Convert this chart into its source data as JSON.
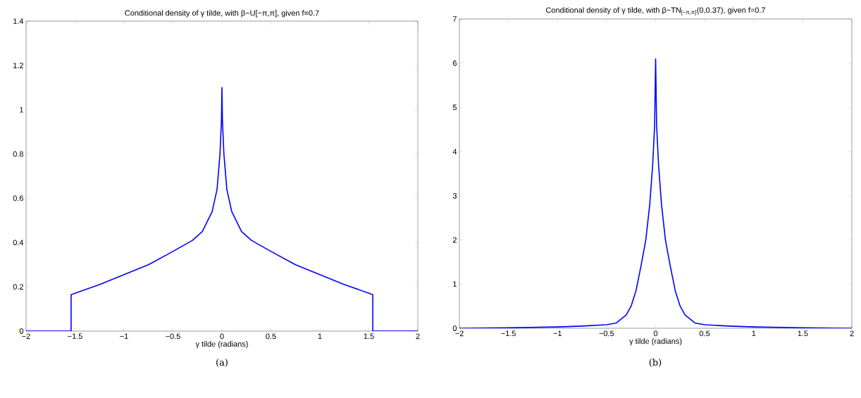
{
  "chart_data": [
    {
      "type": "line",
      "title": "Conditional density of γ tilde, with β~U[−π,π], given f=0.7",
      "xlabel": "γ tilde (radians)",
      "annotations": [
        "(a)"
      ],
      "x": [
        -2,
        -1.54,
        -1.54,
        -1.25,
        -1,
        -0.75,
        -0.5,
        -0.3,
        -0.2,
        -0.1,
        -0.05,
        -0.02,
        -0.005,
        0,
        0.005,
        0.02,
        0.05,
        0.1,
        0.2,
        0.3,
        0.5,
        0.75,
        1,
        1.25,
        1.54,
        1.54,
        2
      ],
      "series": [
        {
          "color": "#0000ff",
          "values": [
            0,
            0,
            0.165,
            0.21,
            0.255,
            0.3,
            0.36,
            0.41,
            0.45,
            0.54,
            0.64,
            0.8,
            0.95,
            1.1,
            0.95,
            0.8,
            0.64,
            0.54,
            0.45,
            0.41,
            0.36,
            0.3,
            0.255,
            0.21,
            0.165,
            0,
            0
          ]
        }
      ],
      "xlim": [
        -2,
        2
      ],
      "ylim": [
        0,
        1.4
      ],
      "xticks": [
        {
          "value": -2,
          "label": "−2"
        },
        {
          "value": -1.5,
          "label": "−1.5"
        },
        {
          "value": -1,
          "label": "−1"
        },
        {
          "value": -0.5,
          "label": "−0.5"
        },
        0,
        0.5,
        1,
        1.5,
        2
      ],
      "yticks": [
        0,
        0.2,
        0.4,
        0.6,
        0.8,
        1,
        1.2,
        1.4
      ]
    },
    {
      "type": "line",
      "title": "Conditional density of γ tilde, with β~TN$_{[−π,π]}$(0,0.37), given f=0.7",
      "xlabel": "γ tilde (radians)",
      "annotations": [
        "(b)"
      ],
      "x": [
        -2,
        -1.5,
        -1,
        -0.75,
        -0.5,
        -0.4,
        -0.3,
        -0.25,
        -0.2,
        -0.15,
        -0.1,
        -0.06,
        -0.03,
        -0.01,
        0,
        0.01,
        0.03,
        0.06,
        0.1,
        0.15,
        0.2,
        0.25,
        0.3,
        0.4,
        0.5,
        0.75,
        1,
        1.5,
        2
      ],
      "series": [
        {
          "color": "#0000ff",
          "values": [
            0,
            0.01,
            0.03,
            0.05,
            0.08,
            0.12,
            0.3,
            0.5,
            0.85,
            1.4,
            2.0,
            2.8,
            3.7,
            4.6,
            6.1,
            4.6,
            3.7,
            2.8,
            2.0,
            1.4,
            0.85,
            0.5,
            0.3,
            0.12,
            0.08,
            0.05,
            0.03,
            0.01,
            0
          ]
        }
      ],
      "xlim": [
        -2,
        2
      ],
      "ylim": [
        0,
        7
      ],
      "xticks": [
        {
          "value": -2,
          "label": "−2"
        },
        {
          "value": -1.5,
          "label": "−1.5"
        },
        {
          "value": -1,
          "label": "−1"
        },
        {
          "value": -0.5,
          "label": "−0.5"
        },
        0,
        0.5,
        1,
        1.5,
        2
      ],
      "yticks": [
        0,
        1,
        2,
        3,
        4,
        5,
        6,
        7
      ]
    }
  ]
}
